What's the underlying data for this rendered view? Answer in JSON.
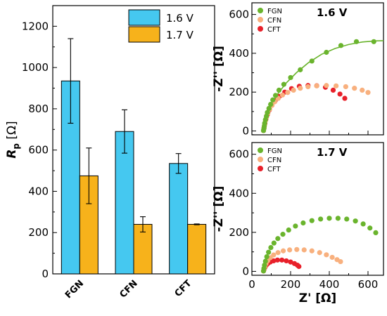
{
  "chart_data": [
    {
      "type": "bar",
      "categories": [
        "FGN",
        "CFN",
        "CFT"
      ],
      "ylabel_symbol": "R",
      "ylabel_subscript": "p",
      "ylabel_unit": "[Ω]",
      "ylim": [
        0,
        1300
      ],
      "yticks": [
        0,
        200,
        400,
        600,
        800,
        1000,
        1200
      ],
      "series": [
        {
          "name": "1.6 V",
          "color": "#45c8f0",
          "values": [
            935,
            690,
            535
          ],
          "errors": [
            205,
            105,
            48
          ]
        },
        {
          "name": "1.7 V",
          "color": "#f7b21b",
          "values": [
            475,
            240,
            240
          ],
          "errors": [
            135,
            37,
            2
          ]
        }
      ],
      "legend": "top-right"
    },
    {
      "type": "scatter",
      "title": "1.6 V",
      "ylabel": "-Z'' [Ω]",
      "xlim": [
        0,
        680
      ],
      "ylim": [
        -20,
        660
      ],
      "yticks": [
        0,
        200,
        400,
        600
      ],
      "legend": "top-left",
      "series": [
        {
          "name": "FGN",
          "color": "#6ab42d",
          "x": [
            60,
            62,
            64,
            66,
            70,
            75,
            80,
            88,
            97,
            108,
            122,
            140,
            165,
            200,
            250,
            310,
            385,
            460,
            540,
            630
          ],
          "y": [
            2,
            12,
            25,
            40,
            58,
            76,
            95,
            116,
            137,
            160,
            183,
            210,
            240,
            275,
            315,
            360,
            405,
            440,
            460,
            460
          ],
          "fit_x": [
            60,
            65,
            75,
            90,
            110,
            140,
            180,
            230,
            290,
            360,
            430,
            500,
            570,
            640,
            680
          ],
          "fit_y": [
            0,
            30,
            68,
            110,
            155,
            200,
            250,
            300,
            350,
            395,
            425,
            445,
            458,
            464,
            465
          ]
        },
        {
          "name": "CFN",
          "color": "#f8b07e",
          "x": [
            60,
            63,
            66,
            70,
            76,
            83,
            92,
            104,
            118,
            136,
            158,
            185,
            215,
            250,
            290,
            335,
            385,
            435,
            485,
            530,
            570,
            600
          ],
          "y": [
            2,
            15,
            32,
            52,
            72,
            92,
            112,
            132,
            150,
            168,
            185,
            198,
            210,
            220,
            228,
            232,
            234,
            232,
            228,
            220,
            210,
            198
          ]
        },
        {
          "name": "CFT",
          "color": "#e8202a",
          "x": [
            60,
            63,
            67,
            72,
            80,
            90,
            103,
            120,
            142,
            170,
            205,
            245,
            290,
            335,
            380,
            420,
            455,
            480
          ],
          "y": [
            2,
            18,
            38,
            60,
            84,
            108,
            132,
            155,
            178,
            200,
            218,
            230,
            234,
            233,
            225,
            210,
            190,
            168
          ]
        }
      ]
    },
    {
      "type": "scatter",
      "title": "1.7 V",
      "xlabel": "Z' [Ω]",
      "ylabel": "-Z'' [Ω]",
      "xlim": [
        0,
        680
      ],
      "ylim": [
        -20,
        660
      ],
      "xticks": [
        0,
        200,
        400,
        600
      ],
      "yticks": [
        0,
        200,
        400,
        600
      ],
      "legend": "top-left",
      "series": [
        {
          "name": "FGN",
          "color": "#6ab42d",
          "x": [
            60,
            62,
            65,
            70,
            77,
            86,
            98,
            114,
            134,
            160,
            190,
            225,
            265,
            310,
            355,
            400,
            445,
            490,
            535,
            575,
            610,
            640
          ],
          "y": [
            2,
            15,
            32,
            52,
            75,
            98,
            122,
            145,
            168,
            190,
            212,
            232,
            248,
            260,
            268,
            272,
            272,
            268,
            258,
            243,
            222,
            198
          ]
        },
        {
          "name": "CFN",
          "color": "#f8b07e",
          "x": [
            60,
            63,
            67,
            73,
            82,
            95,
            112,
            135,
            162,
            195,
            232,
            270,
            310,
            350,
            385,
            415,
            440,
            458
          ],
          "y": [
            2,
            12,
            25,
            40,
            55,
            70,
            84,
            96,
            105,
            110,
            112,
            110,
            105,
            96,
            85,
            72,
            60,
            50
          ]
        },
        {
          "name": "CFT",
          "color": "#e8202a",
          "x": [
            60,
            63,
            67,
            73,
            82,
            95,
            112,
            132,
            155,
            178,
            200,
            220,
            235,
            243
          ],
          "y": [
            2,
            10,
            20,
            30,
            40,
            48,
            54,
            58,
            58,
            54,
            48,
            40,
            32,
            25
          ]
        }
      ]
    }
  ]
}
